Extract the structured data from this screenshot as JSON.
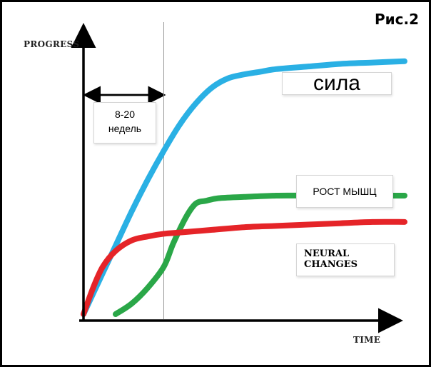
{
  "figure_label": "Рис.2",
  "chart_data": {
    "type": "line",
    "xlabel": "TIME",
    "ylabel": "PROGRESS",
    "grid": false,
    "xlim": [
      0,
      100
    ],
    "ylim": [
      0,
      100
    ],
    "series": [
      {
        "name": "сила",
        "color": "#2ab0e4",
        "x": [
          0,
          5,
          10,
          15,
          20,
          25,
          30,
          35,
          40,
          45,
          50,
          55,
          60,
          70,
          80,
          90,
          100
        ],
        "y": [
          0,
          13,
          26,
          39,
          51,
          62,
          72,
          80,
          86,
          89.5,
          91,
          92,
          93,
          94,
          95,
          95.5,
          96
        ]
      },
      {
        "name": "РОСТ МЫШЦ",
        "color": "#2aa748",
        "x": [
          10,
          15,
          20,
          25,
          28,
          32,
          35,
          38,
          42,
          50,
          60,
          70,
          80,
          90,
          100
        ],
        "y": [
          0,
          4,
          10,
          18,
          27,
          37,
          42,
          43,
          44,
          44.5,
          45,
          45,
          45,
          45,
          45
        ]
      },
      {
        "name": "NEURAL CHANGES",
        "color": "#e52428",
        "x": [
          0,
          3,
          6,
          10,
          15,
          20,
          25,
          30,
          40,
          50,
          60,
          70,
          80,
          90,
          100
        ],
        "y": [
          0,
          10,
          18,
          24,
          28,
          29.5,
          30.5,
          31,
          32,
          33,
          33.5,
          34,
          34.5,
          35,
          35
        ]
      }
    ],
    "annotations": [
      {
        "type": "range-arrow",
        "x_start": 0,
        "x_end": 25,
        "label_line1": "8-20",
        "label_line2": "недель"
      },
      {
        "type": "vline",
        "x": 25
      }
    ]
  }
}
